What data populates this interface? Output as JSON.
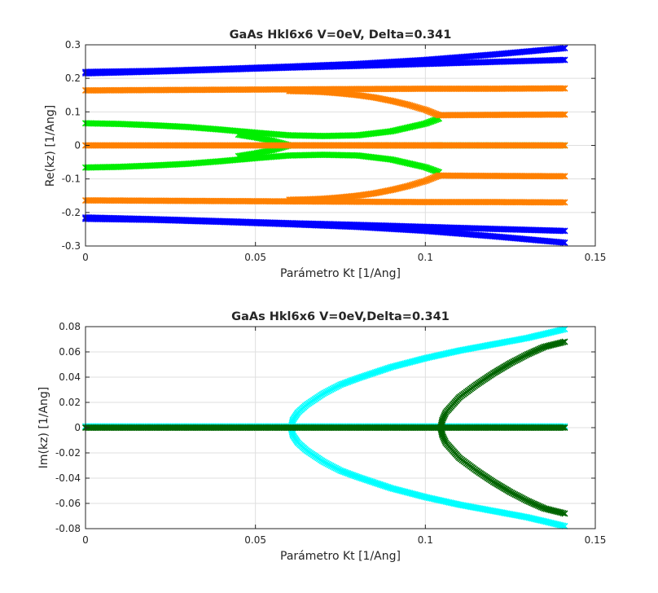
{
  "chart_data": [
    {
      "type": "scatter",
      "title": "GaAs Hkl6x6 V=0eV, Delta=0.341",
      "xlabel": "Parámetro Kt [1/Ang]",
      "ylabel": "Re(kz) [1/Ang]",
      "xlim": [
        0,
        0.15
      ],
      "ylim": [
        -0.3,
        0.3
      ],
      "xticks": [
        0,
        0.05,
        0.1,
        0.15
      ],
      "yticks": [
        -0.3,
        -0.2,
        -0.1,
        0,
        0.1,
        0.2,
        0.3
      ],
      "xtick_labels": [
        "0",
        "0.05",
        "0.1",
        "0.15"
      ],
      "ytick_labels": [
        "-0.3",
        "-0.2",
        "-0.1",
        "0",
        "0.1",
        "0.2",
        "0.3"
      ],
      "grid": true,
      "marker": "x",
      "series": [
        {
          "color": "#0000ff",
          "x": [
            0,
            0.02,
            0.04,
            0.06,
            0.08,
            0.1,
            0.12,
            0.141
          ],
          "y": [
            0.219,
            0.222,
            0.228,
            0.235,
            0.243,
            0.255,
            0.271,
            0.29
          ]
        },
        {
          "color": "#0000ff",
          "x": [
            0,
            0.02,
            0.04,
            0.06,
            0.08,
            0.1,
            0.12,
            0.141
          ],
          "y": [
            0.215,
            0.22,
            0.226,
            0.232,
            0.237,
            0.243,
            0.249,
            0.255
          ]
        },
        {
          "color": "#0000ff",
          "x": [
            0,
            0.02,
            0.04,
            0.06,
            0.08,
            0.1,
            0.12,
            0.141
          ],
          "y": [
            -0.219,
            -0.222,
            -0.228,
            -0.235,
            -0.243,
            -0.255,
            -0.271,
            -0.29
          ]
        },
        {
          "color": "#0000ff",
          "x": [
            0,
            0.02,
            0.04,
            0.06,
            0.08,
            0.1,
            0.12,
            0.141
          ],
          "y": [
            -0.215,
            -0.22,
            -0.226,
            -0.232,
            -0.237,
            -0.243,
            -0.249,
            -0.255
          ]
        },
        {
          "color": "#00ee00",
          "x": [
            0,
            0.01,
            0.02,
            0.03,
            0.04,
            0.05,
            0.06,
            0.07,
            0.08,
            0.09,
            0.1,
            0.104
          ],
          "y": [
            0.066,
            0.064,
            0.06,
            0.055,
            0.047,
            0.038,
            0.03,
            0.028,
            0.03,
            0.042,
            0.065,
            0.08
          ]
        },
        {
          "color": "#00ee00",
          "x": [
            0,
            0.01,
            0.02,
            0.03,
            0.04,
            0.05,
            0.06,
            0.07,
            0.08,
            0.09,
            0.1,
            0.104
          ],
          "y": [
            -0.066,
            -0.064,
            -0.06,
            -0.055,
            -0.047,
            -0.038,
            -0.03,
            -0.028,
            -0.03,
            -0.042,
            -0.065,
            -0.08
          ]
        },
        {
          "color": "#00ee00",
          "x": [
            0.045,
            0.05,
            0.055,
            0.06
          ],
          "y": [
            0.032,
            0.024,
            0.014,
            0.0
          ]
        },
        {
          "color": "#00ee00",
          "x": [
            0.045,
            0.05,
            0.055,
            0.06
          ],
          "y": [
            -0.032,
            -0.024,
            -0.014,
            0.0
          ]
        },
        {
          "color": "#00ee00",
          "x": [
            0.06,
            0.141
          ],
          "y": [
            0.0,
            0.0
          ]
        },
        {
          "color": "#ff8000",
          "x": [
            0,
            0.02,
            0.04,
            0.06,
            0.08,
            0.1,
            0.12,
            0.141
          ],
          "y": [
            0.164,
            0.165,
            0.166,
            0.167,
            0.168,
            0.169,
            0.169,
            0.17
          ]
        },
        {
          "color": "#ff8000",
          "x": [
            0,
            0.02,
            0.04,
            0.06,
            0.08,
            0.1,
            0.12,
            0.141
          ],
          "y": [
            -0.164,
            -0.165,
            -0.166,
            -0.167,
            -0.168,
            -0.169,
            -0.169,
            -0.17
          ]
        },
        {
          "color": "#ff8000",
          "x": [
            0,
            0.02,
            0.04,
            0.055,
            0.06,
            0.141
          ],
          "y": [
            0,
            0,
            0,
            0,
            0,
            0
          ]
        },
        {
          "color": "#ff8000",
          "x": [
            0.06,
            0.065,
            0.07,
            0.075,
            0.08,
            0.085,
            0.09,
            0.095,
            0.1,
            0.104
          ],
          "y": [
            0.162,
            0.161,
            0.159,
            0.155,
            0.15,
            0.143,
            0.133,
            0.121,
            0.106,
            0.09
          ]
        },
        {
          "color": "#ff8000",
          "x": [
            0.06,
            0.065,
            0.07,
            0.075,
            0.08,
            0.085,
            0.09,
            0.095,
            0.1,
            0.104
          ],
          "y": [
            -0.162,
            -0.161,
            -0.159,
            -0.155,
            -0.15,
            -0.143,
            -0.133,
            -0.121,
            -0.106,
            -0.09
          ]
        },
        {
          "color": "#ff8000",
          "x": [
            0.104,
            0.12,
            0.141
          ],
          "y": [
            0.09,
            0.091,
            0.092
          ]
        },
        {
          "color": "#ff8000",
          "x": [
            0.104,
            0.12,
            0.141
          ],
          "y": [
            -0.09,
            -0.091,
            -0.092
          ]
        },
        {
          "color": "#ff8000",
          "x": [
            0.06,
            0.07,
            0.08,
            0.09,
            0.1,
            0.104
          ],
          "y": [
            0.0,
            0.0,
            0.0,
            0.0,
            0.0,
            0.0
          ]
        }
      ]
    },
    {
      "type": "scatter",
      "title": "GaAs Hkl6x6 V=0eV,Delta=0.341",
      "xlabel": "Parámetro Kt [1/Ang]",
      "ylabel": "Im(kz) [1/Ang]",
      "xlim": [
        0,
        0.15
      ],
      "ylim": [
        -0.08,
        0.08
      ],
      "xticks": [
        0,
        0.05,
        0.1,
        0.15
      ],
      "yticks": [
        -0.08,
        -0.06,
        -0.04,
        -0.02,
        0,
        0.02,
        0.04,
        0.06,
        0.08
      ],
      "xtick_labels": [
        "0",
        "0.05",
        "0.1",
        "0.15"
      ],
      "ytick_labels": [
        "-0.08",
        "-0.06",
        "-0.04",
        "-0.02",
        "0",
        "0.02",
        "0.04",
        "0.06",
        "0.08"
      ],
      "grid": true,
      "marker": "x",
      "series": [
        {
          "color": "#00ffff",
          "x": [
            0,
            0.02,
            0.04,
            0.06,
            0.08,
            0.1,
            0.12,
            0.141
          ],
          "y": [
            0.001,
            0.001,
            0.001,
            0.001,
            0.001,
            0.001,
            0.001,
            0.001
          ]
        },
        {
          "color": "#00ffff",
          "x": [
            0.0605,
            0.061,
            0.0625,
            0.065,
            0.07,
            0.075,
            0.08,
            0.09,
            0.1,
            0.11,
            0.12,
            0.13,
            0.141
          ],
          "y": [
            0.0,
            0.006,
            0.012,
            0.018,
            0.027,
            0.034,
            0.039,
            0.048,
            0.055,
            0.061,
            0.066,
            0.071,
            0.078
          ]
        },
        {
          "color": "#00ffff",
          "x": [
            0.0605,
            0.061,
            0.0625,
            0.065,
            0.07,
            0.075,
            0.08,
            0.09,
            0.1,
            0.11,
            0.12,
            0.13,
            0.141
          ],
          "y": [
            0.0,
            -0.006,
            -0.012,
            -0.018,
            -0.027,
            -0.034,
            -0.039,
            -0.048,
            -0.055,
            -0.061,
            -0.066,
            -0.071,
            -0.078
          ]
        },
        {
          "color": "#006400",
          "x": [
            0,
            0.02,
            0.04,
            0.06,
            0.08,
            0.1,
            0.12,
            0.141
          ],
          "y": [
            0.0,
            0.0,
            0.0,
            0.0,
            0.0,
            0.0,
            0.0,
            0.0
          ]
        },
        {
          "color": "#006400",
          "x": [
            0.1045,
            0.105,
            0.106,
            0.108,
            0.11,
            0.115,
            0.12,
            0.125,
            0.13,
            0.135,
            0.141
          ],
          "y": [
            0.0,
            0.006,
            0.012,
            0.018,
            0.024,
            0.034,
            0.043,
            0.051,
            0.058,
            0.064,
            0.068
          ]
        },
        {
          "color": "#006400",
          "x": [
            0.1045,
            0.105,
            0.106,
            0.108,
            0.11,
            0.115,
            0.12,
            0.125,
            0.13,
            0.135,
            0.141
          ],
          "y": [
            0.0,
            -0.006,
            -0.012,
            -0.018,
            -0.024,
            -0.034,
            -0.043,
            -0.051,
            -0.058,
            -0.064,
            -0.068
          ]
        }
      ]
    }
  ]
}
